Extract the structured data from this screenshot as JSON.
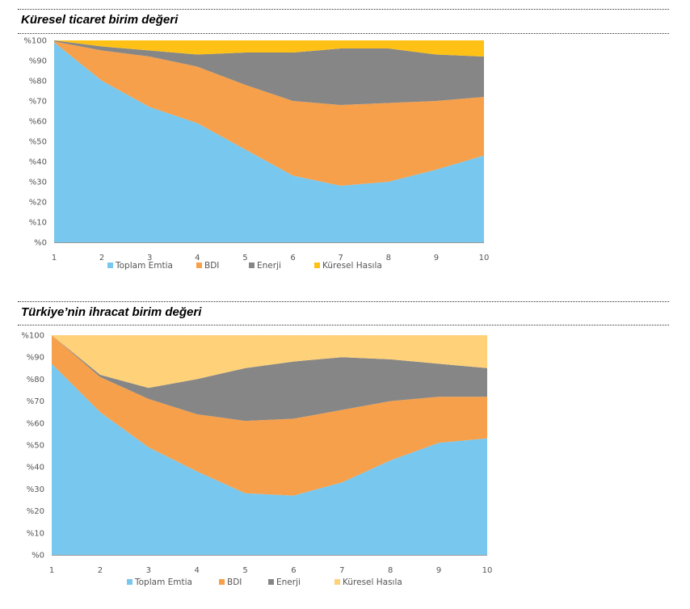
{
  "chart_data": [
    {
      "type": "area",
      "stacked": true,
      "title": "Küresel ticaret birim değeri",
      "x": [
        1,
        2,
        3,
        4,
        5,
        6,
        7,
        8,
        9,
        10
      ],
      "ylim": [
        0,
        100
      ],
      "ytick_labels": [
        "%0",
        "%10",
        "%20",
        "%30",
        "%40",
        "%50",
        "%60",
        "%70",
        "%80",
        "%90",
        "%100"
      ],
      "xtick_labels": [
        "1",
        "2",
        "3",
        "4",
        "5",
        "6",
        "7",
        "8",
        "9",
        "10"
      ],
      "legend_placement": "bottom",
      "series": [
        {
          "name": "Toplam Emtia",
          "color": "#78C7EF",
          "values": [
            99,
            80,
            67,
            59,
            46,
            33,
            28,
            30,
            36,
            43
          ]
        },
        {
          "name": "BDI",
          "color": "#F7A04B",
          "values": [
            0.5,
            15,
            25,
            28,
            32,
            37,
            40,
            39,
            34,
            29
          ]
        },
        {
          "name": "Enerji",
          "color": "#868686",
          "values": [
            0.5,
            2,
            3,
            6,
            16,
            24,
            28,
            27,
            23,
            20
          ]
        },
        {
          "name": "Küresel Hasıla",
          "color": "#FFC116",
          "values": [
            0,
            3,
            5,
            7,
            6,
            6,
            4,
            4,
            7,
            8
          ]
        }
      ]
    },
    {
      "type": "area",
      "stacked": true,
      "title": "Türkiye’nin ihracat birim değeri",
      "x": [
        1,
        2,
        3,
        4,
        5,
        6,
        7,
        8,
        9,
        10
      ],
      "ylim": [
        0,
        100
      ],
      "ytick_labels": [
        "%0",
        "%10",
        "%20",
        "%30",
        "%40",
        "%50",
        "%60",
        "%70",
        "%80",
        "%90",
        "%100"
      ],
      "xtick_labels": [
        "1",
        "2",
        "3",
        "4",
        "5",
        "6",
        "7",
        "8",
        "9",
        "10"
      ],
      "legend_placement": "bottom",
      "series": [
        {
          "name": "Toplam Emtia",
          "color": "#78C7EF",
          "values": [
            87,
            65,
            49,
            38,
            28,
            27,
            33,
            43,
            51,
            53
          ]
        },
        {
          "name": "BDI",
          "color": "#F7A04B",
          "values": [
            13,
            16,
            22,
            26,
            33,
            35,
            33,
            27,
            21,
            19
          ]
        },
        {
          "name": "Enerji",
          "color": "#868686",
          "values": [
            0,
            1,
            5,
            16,
            24,
            26,
            24,
            19,
            15,
            13
          ]
        },
        {
          "name": "Küresel Hasıla",
          "color": "#FFD27A",
          "values": [
            0,
            18,
            24,
            20,
            15,
            12,
            10,
            11,
            13,
            15
          ]
        }
      ]
    }
  ]
}
